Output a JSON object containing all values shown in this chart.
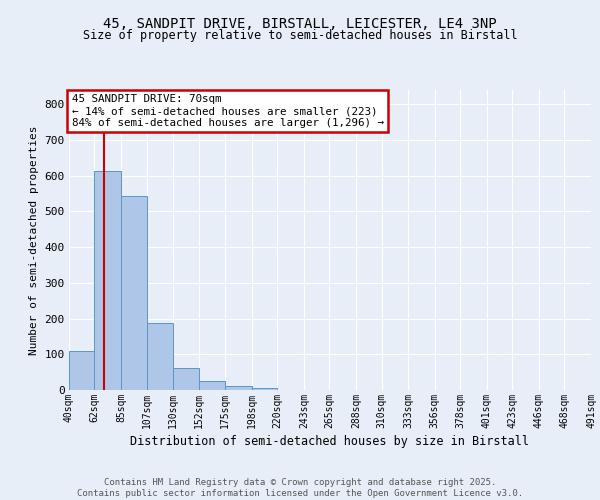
{
  "title_line1": "45, SANDPIT DRIVE, BIRSTALL, LEICESTER, LE4 3NP",
  "title_line2": "Size of property relative to semi-detached houses in Birstall",
  "xlabel": "Distribution of semi-detached houses by size in Birstall",
  "ylabel": "Number of semi-detached properties",
  "bin_labels": [
    "40sqm",
    "62sqm",
    "85sqm",
    "107sqm",
    "130sqm",
    "152sqm",
    "175sqm",
    "198sqm",
    "220sqm",
    "243sqm",
    "265sqm",
    "288sqm",
    "310sqm",
    "333sqm",
    "356sqm",
    "378sqm",
    "401sqm",
    "423sqm",
    "446sqm",
    "468sqm",
    "491sqm"
  ],
  "bin_edges": [
    40,
    62,
    85,
    107,
    130,
    152,
    175,
    198,
    220,
    243,
    265,
    288,
    310,
    333,
    356,
    378,
    401,
    423,
    446,
    468,
    491
  ],
  "bar_values": [
    110,
    614,
    544,
    188,
    62,
    25,
    10,
    5,
    0,
    0,
    0,
    0,
    0,
    0,
    0,
    0,
    0,
    0,
    0,
    0
  ],
  "bar_color": "#aec6e8",
  "bar_edge_color": "#5a96c8",
  "property_size": 70,
  "property_line_color": "#cc0000",
  "annotation_line1": "45 SANDPIT DRIVE: 70sqm",
  "annotation_line2": "← 14% of semi-detached houses are smaller (223)",
  "annotation_line3": "84% of semi-detached houses are larger (1,296) →",
  "annotation_box_color": "#cc0000",
  "ylim": [
    0,
    840
  ],
  "yticks": [
    0,
    100,
    200,
    300,
    400,
    500,
    600,
    700,
    800
  ],
  "footer_line1": "Contains HM Land Registry data © Crown copyright and database right 2025.",
  "footer_line2": "Contains public sector information licensed under the Open Government Licence v3.0.",
  "background_color": "#e8eef8",
  "plot_bg_color": "#e8eef8",
  "grid_color": "#ffffff"
}
